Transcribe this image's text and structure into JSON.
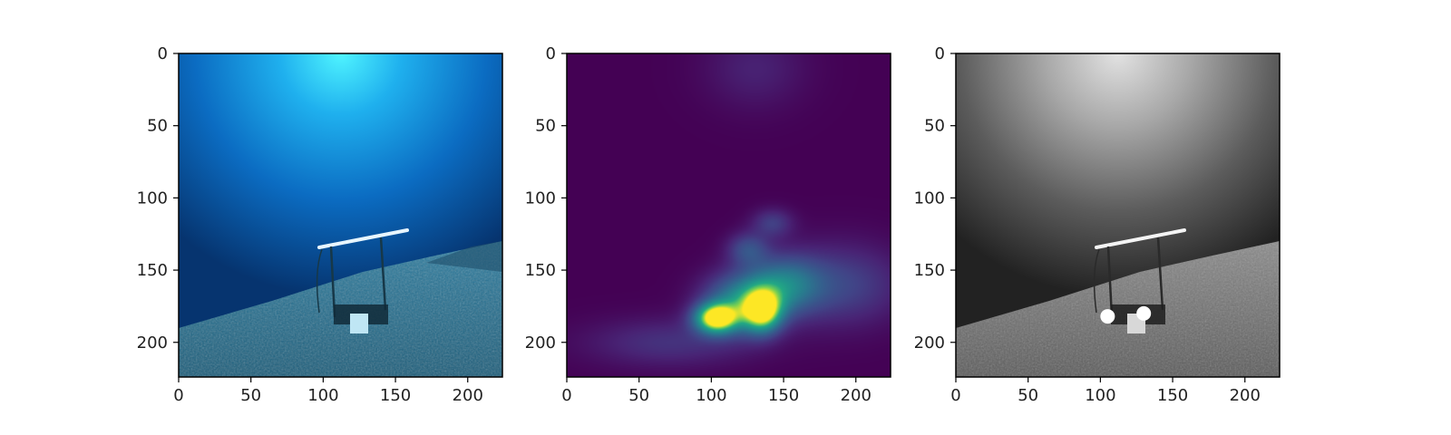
{
  "chart_data": [
    {
      "type": "image",
      "content": "underwater RGB photo of a metal frame on the seafloor",
      "xlim": [
        0,
        224
      ],
      "ylim": [
        224,
        0
      ],
      "xticks": [
        0,
        50,
        100,
        150,
        200
      ],
      "yticks": [
        0,
        50,
        100,
        150,
        200
      ],
      "title": "",
      "xlabel": "",
      "ylabel": ""
    },
    {
      "type": "heatmap",
      "colormap": "viridis",
      "xlim": [
        0,
        224
      ],
      "ylim": [
        224,
        0
      ],
      "xticks": [
        0,
        50,
        100,
        150,
        200
      ],
      "yticks": [
        0,
        50,
        100,
        150,
        200
      ],
      "hotspots": [
        {
          "x": 103,
          "y": 183,
          "intensity": 1.0,
          "sx": 10,
          "sy": 7
        },
        {
          "x": 135,
          "y": 178,
          "intensity": 0.85,
          "sx": 9,
          "sy": 10
        },
        {
          "x": 120,
          "y": 172,
          "intensity": 0.55,
          "sx": 18,
          "sy": 14
        },
        {
          "x": 150,
          "y": 160,
          "intensity": 0.45,
          "sx": 18,
          "sy": 14
        },
        {
          "x": 125,
          "y": 135,
          "intensity": 0.28,
          "sx": 10,
          "sy": 8
        },
        {
          "x": 142,
          "y": 117,
          "intensity": 0.22,
          "sx": 10,
          "sy": 7
        },
        {
          "x": 190,
          "y": 160,
          "intensity": 0.25,
          "sx": 30,
          "sy": 20
        },
        {
          "x": 70,
          "y": 200,
          "intensity": 0.18,
          "sx": 40,
          "sy": 12
        },
        {
          "x": 130,
          "y": 10,
          "intensity": 0.12,
          "sx": 25,
          "sy": 20
        }
      ],
      "title": "",
      "xlabel": "",
      "ylabel": ""
    },
    {
      "type": "image",
      "content": "grayscale version of the photo with keypoint markers",
      "xlim": [
        0,
        224
      ],
      "ylim": [
        224,
        0
      ],
      "xticks": [
        0,
        50,
        100,
        150,
        200
      ],
      "yticks": [
        0,
        50,
        100,
        150,
        200
      ],
      "markers": [
        {
          "x": 105,
          "y": 182
        },
        {
          "x": 130,
          "y": 180
        }
      ],
      "title": "",
      "xlabel": "",
      "ylabel": ""
    }
  ]
}
